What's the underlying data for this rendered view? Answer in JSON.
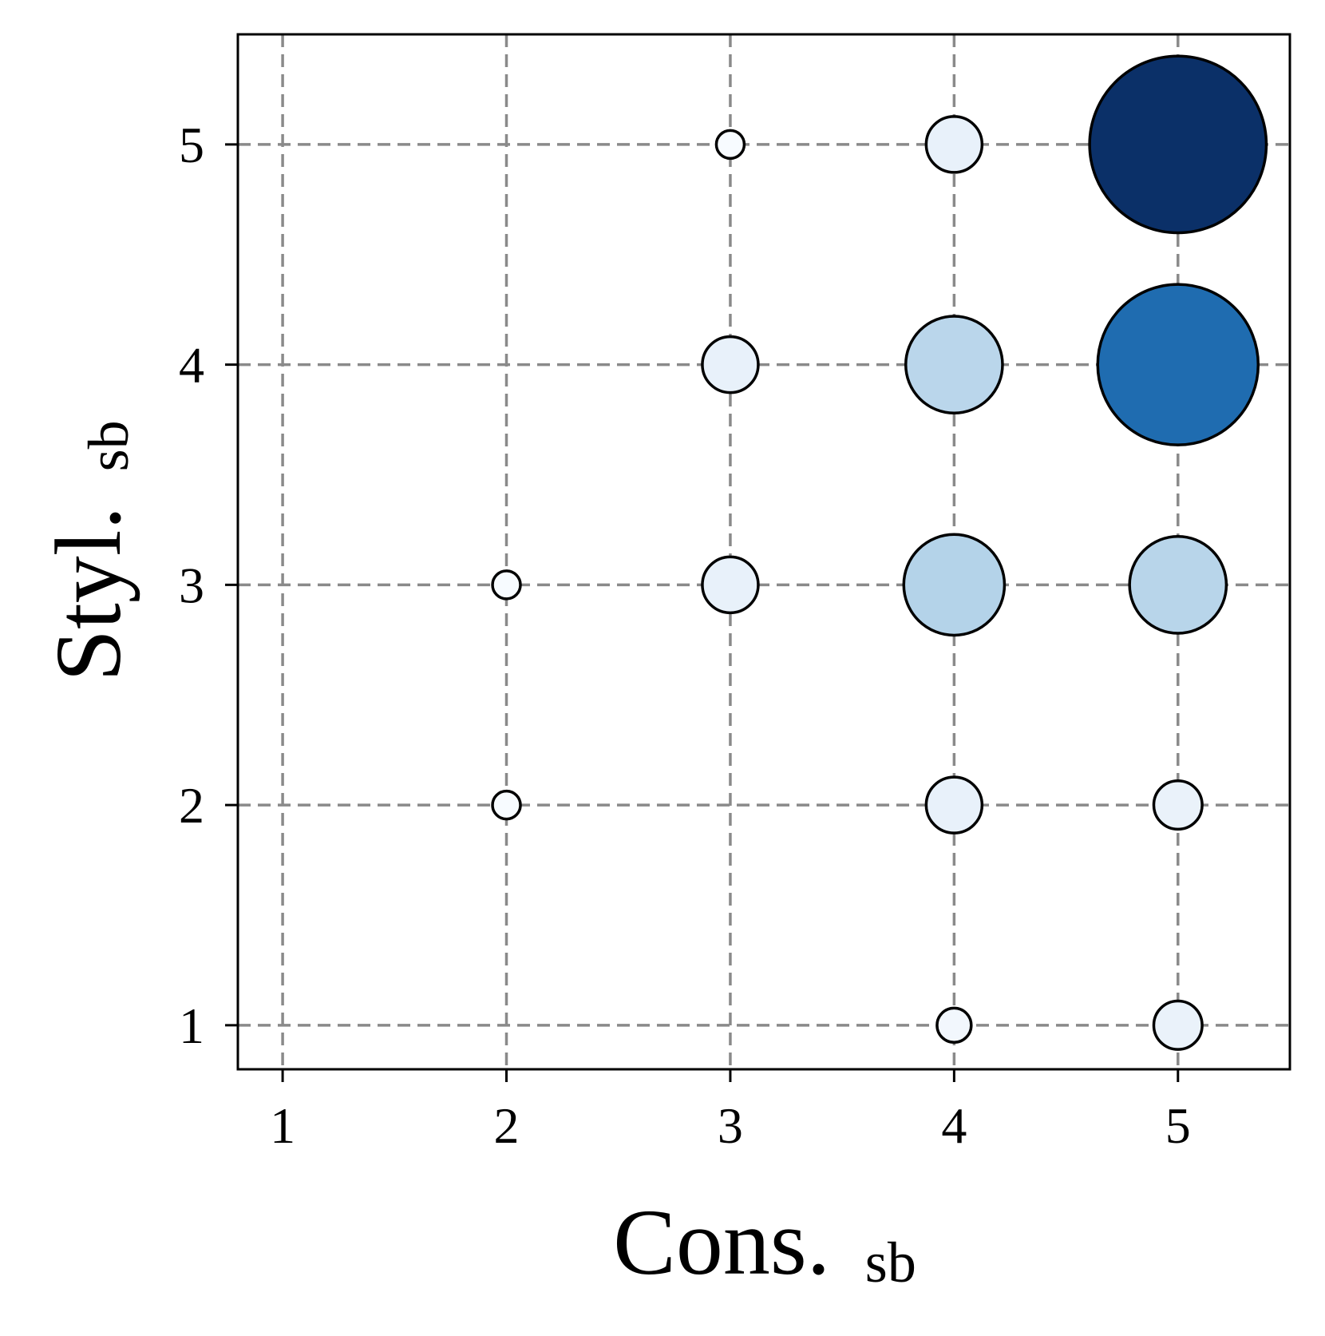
{
  "chart_data": {
    "type": "scatter",
    "subtype": "bubble",
    "xlabel": "Cons.",
    "xlabel_subscript": "sb",
    "ylabel": "Styl.",
    "ylabel_subscript": "sb",
    "xlim": [
      0.8,
      5.5
    ],
    "ylim": [
      0.8,
      5.5
    ],
    "x_ticks": [
      "1",
      "2",
      "3",
      "4",
      "5"
    ],
    "y_ticks": [
      "1",
      "2",
      "3",
      "4",
      "5"
    ],
    "grid": true,
    "grid_style": "dashed",
    "colormap": "Blues",
    "points": [
      {
        "x": 3,
        "y": 5,
        "size": 1,
        "color": "#f7fbff"
      },
      {
        "x": 4,
        "y": 5,
        "size": 4,
        "color": "#e8f1fa"
      },
      {
        "x": 5,
        "y": 5,
        "size": 40,
        "color": "#0b3068"
      },
      {
        "x": 3,
        "y": 4,
        "size": 4,
        "color": "#e8f1fa"
      },
      {
        "x": 4,
        "y": 4,
        "size": 12,
        "color": "#bad6eb"
      },
      {
        "x": 5,
        "y": 4,
        "size": 33,
        "color": "#1f6cb0"
      },
      {
        "x": 2,
        "y": 3,
        "size": 1,
        "color": "#f7fbff"
      },
      {
        "x": 3,
        "y": 3,
        "size": 4,
        "color": "#e8f1fa"
      },
      {
        "x": 4,
        "y": 3,
        "size": 13,
        "color": "#b4d3e9"
      },
      {
        "x": 5,
        "y": 3,
        "size": 12,
        "color": "#b8d5ea"
      },
      {
        "x": 2,
        "y": 2,
        "size": 1,
        "color": "#f7fbff"
      },
      {
        "x": 4,
        "y": 2,
        "size": 4,
        "color": "#e8f1fa"
      },
      {
        "x": 5,
        "y": 2,
        "size": 3,
        "color": "#eaf2fa"
      },
      {
        "x": 4,
        "y": 1,
        "size": 1.5,
        "color": "#f2f7fd"
      },
      {
        "x": 5,
        "y": 1,
        "size": 3,
        "color": "#eaf2fa"
      }
    ]
  }
}
